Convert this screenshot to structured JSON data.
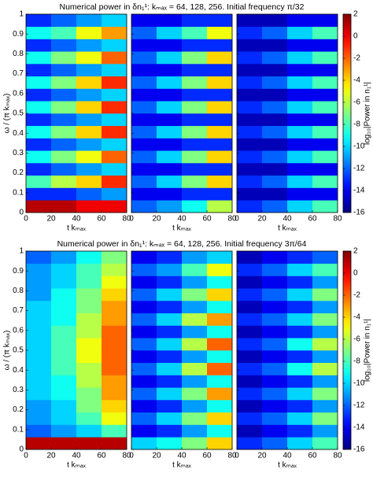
{
  "chart_data": [
    {
      "type": "heatmap",
      "title": "Numerical power in δn₁¹: kₘₐₓ = 64, 128, 256. Initial frequency π/32",
      "x_label": "t kₘₐₓ",
      "y_label": "ω / (π kₘₐₓ)",
      "colorbar_label": "log₁₀|Power in n₁¹|",
      "xlim": [
        0,
        80
      ],
      "xticks": [
        0,
        20,
        40,
        60,
        80
      ],
      "ylim": [
        0,
        1
      ],
      "yticks": [
        0,
        0.1,
        0.2,
        0.3,
        0.4,
        0.5,
        0.6,
        0.7,
        0.8,
        0.9,
        1
      ],
      "clim": [
        -16,
        2
      ],
      "cticks": [
        -16,
        -14,
        -12,
        -10,
        -8,
        -6,
        -4,
        -2,
        0,
        2
      ],
      "colormap": "jet",
      "panels": [
        {
          "z": [
            [
              1,
              1,
              0,
              0
            ],
            [
              -13,
              -13,
              -12,
              -11
            ],
            [
              -8,
              -6,
              -4,
              -1
            ],
            [
              -13,
              -12,
              -11,
              -10
            ],
            [
              -9,
              -7,
              -5,
              -2
            ],
            [
              -13,
              -12,
              -11,
              -10
            ],
            [
              -9,
              -7,
              -4,
              -1
            ],
            [
              -13,
              -12,
              -11,
              -10
            ],
            [
              -9,
              -7,
              -4,
              -1
            ],
            [
              -13,
              -12,
              -11,
              -10
            ],
            [
              -9,
              -7,
              -4,
              -1
            ],
            [
              -13,
              -12,
              -11,
              -10
            ],
            [
              -9,
              -7,
              -5,
              -2
            ],
            [
              -13,
              -12,
              -11,
              -10
            ],
            [
              -9,
              -8,
              -5,
              -3
            ],
            [
              -13,
              -12,
              -11,
              -10
            ]
          ]
        },
        {
          "z": [
            [
              -12,
              -11,
              -9,
              -6
            ],
            [
              -14,
              -14,
              -13,
              -13
            ],
            [
              -12,
              -10,
              -7,
              -4
            ],
            [
              -14,
              -14,
              -13,
              -13
            ],
            [
              -12,
              -10,
              -7,
              -4
            ],
            [
              -14,
              -14,
              -13,
              -13
            ],
            [
              -12,
              -10,
              -7,
              -4
            ],
            [
              -14,
              -14,
              -13,
              -13
            ],
            [
              -12,
              -10,
              -7,
              -4
            ],
            [
              -14,
              -14,
              -13,
              -13
            ],
            [
              -12,
              -10,
              -7,
              -4
            ],
            [
              -14,
              -14,
              -13,
              -13
            ],
            [
              -12,
              -10,
              -7,
              -4
            ],
            [
              -14,
              -14,
              -13,
              -13
            ],
            [
              -12,
              -10,
              -8,
              -5
            ],
            [
              -14,
              -14,
              -13,
              -13
            ]
          ]
        },
        {
          "z": [
            [
              -13,
              -12,
              -10,
              -8
            ],
            [
              -15,
              -15,
              -14,
              -14
            ],
            [
              -13,
              -12,
              -10,
              -8
            ],
            [
              -15,
              -15,
              -14,
              -14
            ],
            [
              -13,
              -12,
              -10,
              -8
            ],
            [
              -15,
              -15,
              -14,
              -14
            ],
            [
              -13,
              -12,
              -10,
              -8
            ],
            [
              -15,
              -15,
              -14,
              -14
            ],
            [
              -13,
              -12,
              -10,
              -8
            ],
            [
              -15,
              -15,
              -14,
              -14
            ],
            [
              -13,
              -12,
              -10,
              -8
            ],
            [
              -15,
              -15,
              -14,
              -14
            ],
            [
              -13,
              -12,
              -10,
              -8
            ],
            [
              -15,
              -15,
              -14,
              -14
            ],
            [
              -13,
              -12,
              -10,
              -8
            ],
            [
              -15,
              -15,
              -14,
              -14
            ]
          ]
        }
      ]
    },
    {
      "type": "heatmap",
      "title": "Numerical power in δn₁¹: kₘₐₓ = 64, 128, 256. Initial frequency 3π/64",
      "x_label": "t kₘₐₓ",
      "y_label": "ω / (π kₘₐₓ)",
      "colorbar_label": "log₁₀|Power in n₁¹|",
      "xlim": [
        0,
        80
      ],
      "xticks": [
        0,
        20,
        40,
        60,
        80
      ],
      "ylim": [
        0,
        1
      ],
      "yticks": [
        0,
        0.1,
        0.2,
        0.3,
        0.4,
        0.5,
        0.6,
        0.7,
        0.8,
        0.9,
        1
      ],
      "clim": [
        -16,
        2
      ],
      "cticks": [
        -16,
        -14,
        -12,
        -10,
        -8,
        -6,
        -4,
        -2,
        0,
        2
      ],
      "colormap": "jet",
      "panels": [
        {
          "z": [
            [
              1,
              1,
              1,
              1
            ],
            [
              -12,
              -11,
              -10,
              -8
            ],
            [
              -11,
              -10,
              -8,
              -5
            ],
            [
              -11,
              -10,
              -7,
              -4
            ],
            [
              -10,
              -9,
              -7,
              -3
            ],
            [
              -10,
              -9,
              -6,
              -3
            ],
            [
              -10,
              -8,
              -6,
              -2
            ],
            [
              -10,
              -8,
              -5,
              -2
            ],
            [
              -10,
              -8,
              -5,
              -2
            ],
            [
              -10,
              -8,
              -6,
              -2
            ],
            [
              -10,
              -9,
              -6,
              -3
            ],
            [
              -10,
              -9,
              -7,
              -3
            ],
            [
              -11,
              -9,
              -7,
              -4
            ],
            [
              -11,
              -10,
              -8,
              -5
            ],
            [
              -11,
              -10,
              -8,
              -6
            ],
            [
              -12,
              -11,
              -9,
              -7
            ]
          ]
        },
        {
          "z": [
            [
              -10,
              -9,
              -7,
              -4
            ],
            [
              -14,
              -13,
              -11,
              -9
            ],
            [
              -12,
              -10,
              -7,
              -4
            ],
            [
              -14,
              -13,
              -11,
              -9
            ],
            [
              -12,
              -10,
              -7,
              -3
            ],
            [
              -14,
              -13,
              -11,
              -9
            ],
            [
              -12,
              -10,
              -6,
              -2
            ],
            [
              -14,
              -13,
              -11,
              -9
            ],
            [
              -12,
              -10,
              -6,
              -2
            ],
            [
              -14,
              -13,
              -11,
              -9
            ],
            [
              -12,
              -10,
              -6,
              -3
            ],
            [
              -14,
              -13,
              -11,
              -9
            ],
            [
              -12,
              -10,
              -7,
              -4
            ],
            [
              -14,
              -13,
              -11,
              -9
            ],
            [
              -12,
              -11,
              -8,
              -5
            ],
            [
              -14,
              -13,
              -11,
              -10
            ]
          ]
        },
        {
          "z": [
            [
              -13,
              -12,
              -10,
              -8
            ],
            [
              -15,
              -14,
              -13,
              -11
            ],
            [
              -13,
              -12,
              -10,
              -7
            ],
            [
              -15,
              -14,
              -13,
              -11
            ],
            [
              -13,
              -12,
              -10,
              -7
            ],
            [
              -15,
              -14,
              -13,
              -11
            ],
            [
              -13,
              -12,
              -9,
              -6
            ],
            [
              -15,
              -14,
              -13,
              -11
            ],
            [
              -13,
              -12,
              -9,
              -6
            ],
            [
              -15,
              -14,
              -13,
              -11
            ],
            [
              -13,
              -12,
              -10,
              -7
            ],
            [
              -15,
              -14,
              -13,
              -11
            ],
            [
              -13,
              -12,
              -10,
              -7
            ],
            [
              -15,
              -14,
              -13,
              -11
            ],
            [
              -13,
              -12,
              -10,
              -8
            ],
            [
              -15,
              -14,
              -13,
              -12
            ]
          ]
        }
      ]
    }
  ]
}
